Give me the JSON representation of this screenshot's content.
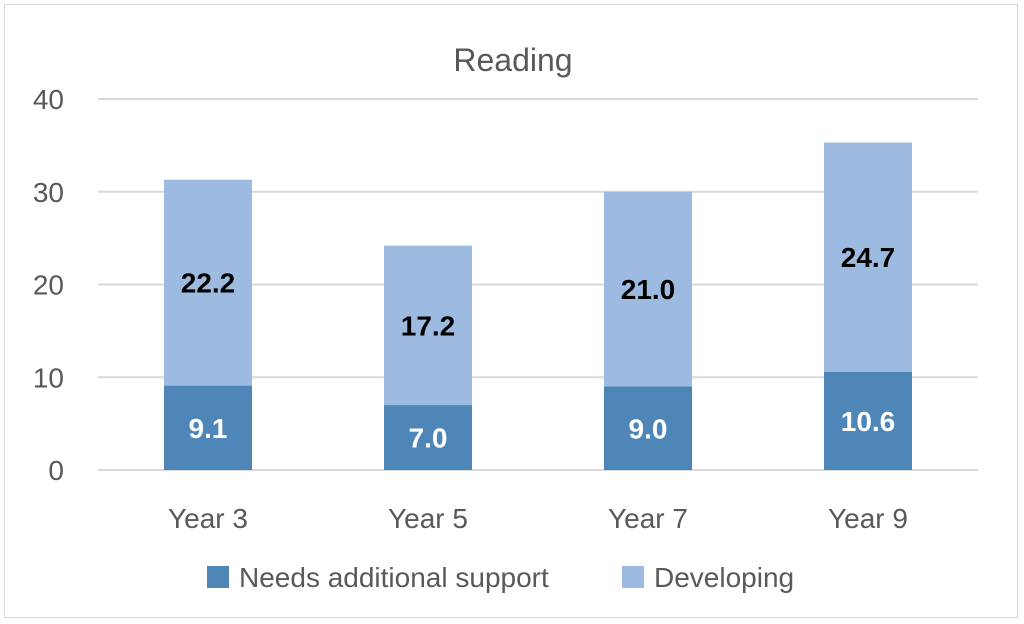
{
  "chart_data": {
    "type": "bar",
    "stacked": true,
    "title": "Reading",
    "xlabel": "",
    "ylabel": "",
    "ylim": [
      0,
      40
    ],
    "yticks": [
      0,
      10,
      20,
      30,
      40
    ],
    "grid": true,
    "legend_position": "bottom",
    "categories": [
      "Year 3",
      "Year 5",
      "Year 7",
      "Year 9"
    ],
    "series": [
      {
        "name": "Needs additional support",
        "values": [
          9.1,
          7.0,
          9.0,
          10.6
        ],
        "labels": [
          "9.1",
          "7.0",
          "9.0",
          "10.6"
        ],
        "color": "#4f86b8",
        "label_color": "#ffffff"
      },
      {
        "name": "Developing",
        "values": [
          22.2,
          17.2,
          21.0,
          24.7
        ],
        "labels": [
          "22.2",
          "17.2",
          "21.0",
          "24.7"
        ],
        "color": "#9dbbe0",
        "label_color": "#000000"
      }
    ]
  }
}
